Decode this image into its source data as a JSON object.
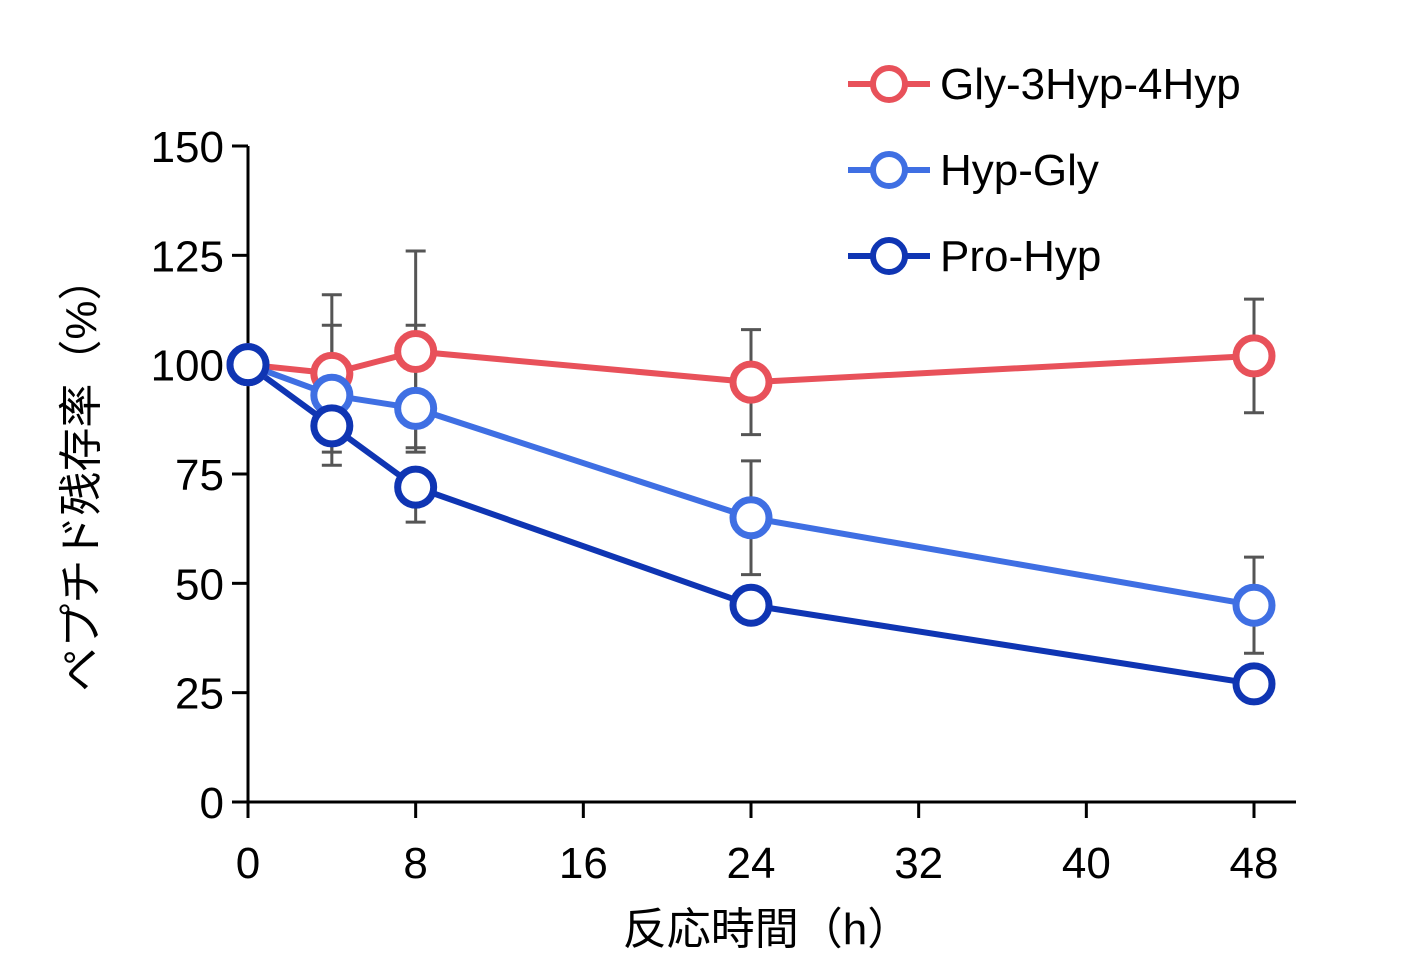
{
  "chart_data": {
    "type": "line",
    "title": "",
    "xlabel": "反応時間（h）",
    "ylabel": "ペプチド残存率（%）",
    "xlim": [
      0,
      50
    ],
    "ylim": [
      0,
      150
    ],
    "xticks": [
      0,
      8,
      16,
      24,
      32,
      40,
      48
    ],
    "yticks": [
      0,
      25,
      50,
      75,
      100,
      125,
      150
    ],
    "grid": false,
    "legend_position": "top-right",
    "x": [
      0,
      4,
      8,
      24,
      48
    ],
    "series": [
      {
        "name": "Gly-3Hyp-4Hyp",
        "color": "#e8515a",
        "values": [
          100,
          98,
          103,
          96,
          102
        ],
        "error_upper": [
          100,
          116,
          126,
          108,
          115
        ],
        "error_lower": [
          100,
          80,
          80,
          84,
          89
        ]
      },
      {
        "name": "Hyp-Gly",
        "color": "#3f6fe3",
        "values": [
          100,
          93,
          90,
          65,
          45
        ],
        "error_upper": [
          100,
          109,
          109,
          78,
          56
        ],
        "error_lower": [
          100,
          77,
          81,
          52,
          34
        ]
      },
      {
        "name": "Pro-Hyp",
        "color": "#0f35b3",
        "values": [
          100,
          86,
          72,
          45,
          27
        ],
        "error_upper": [
          100,
          86,
          72,
          45,
          27
        ],
        "error_lower": [
          100,
          86,
          64,
          45,
          27
        ]
      }
    ],
    "error_bar_color": "#555555"
  }
}
